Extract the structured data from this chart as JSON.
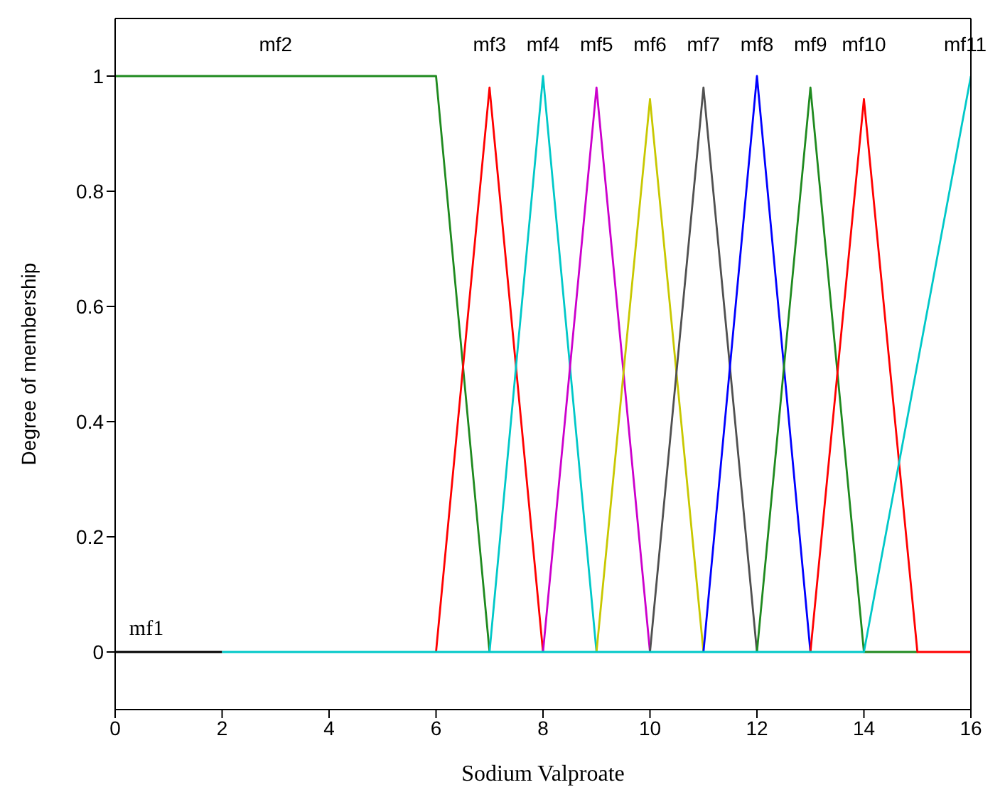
{
  "chart_data": {
    "type": "line",
    "xlabel": "Sodium Valproate",
    "ylabel": "Degree of membership",
    "xlim": [
      0,
      16
    ],
    "xticks": [
      0,
      2,
      4,
      6,
      8,
      10,
      12,
      14,
      16
    ],
    "ylim": [
      -0.1,
      1.1
    ],
    "yticks": [
      0,
      0.2,
      0.4,
      0.6,
      0.8,
      1
    ],
    "marker": "none",
    "line_style": "solid",
    "series": [
      {
        "name": "mf1",
        "color": "#000000",
        "x": [
          0,
          2
        ],
        "values": [
          0,
          0
        ]
      },
      {
        "name": "mf2",
        "color": "#1f8a1f",
        "x": [
          0,
          6,
          7
        ],
        "values": [
          1,
          1,
          0
        ]
      },
      {
        "name": "mf3",
        "color": "#ff0000",
        "x": [
          6,
          7,
          8
        ],
        "values": [
          0,
          0.98,
          0
        ]
      },
      {
        "name": "mf4",
        "color": "#00c8c8",
        "x": [
          7,
          8,
          9
        ],
        "values": [
          0,
          1,
          0
        ]
      },
      {
        "name": "mf5",
        "color": "#cc00cc",
        "x": [
          8,
          9,
          10
        ],
        "values": [
          0,
          0.98,
          0
        ]
      },
      {
        "name": "mf6",
        "color": "#c8c800",
        "x": [
          9,
          10,
          11
        ],
        "values": [
          0,
          0.96,
          0
        ]
      },
      {
        "name": "mf7",
        "color": "#505050",
        "x": [
          10,
          11,
          12
        ],
        "values": [
          0,
          0.98,
          0
        ]
      },
      {
        "name": "mf8",
        "color": "#0000ff",
        "x": [
          11,
          12,
          13
        ],
        "values": [
          0,
          1,
          0
        ]
      },
      {
        "name": "mf9",
        "color": "#1f8a1f",
        "x": [
          12,
          13,
          14,
          15
        ],
        "values": [
          0,
          0.98,
          0,
          0
        ]
      },
      {
        "name": "mf10",
        "color": "#ff0000",
        "x": [
          13,
          14,
          15,
          16
        ],
        "values": [
          0,
          0.96,
          0,
          0
        ]
      },
      {
        "name": "mf11",
        "color": "#00c8c8",
        "x": [
          2,
          14,
          16
        ],
        "values": [
          0,
          0,
          1
        ]
      }
    ]
  }
}
